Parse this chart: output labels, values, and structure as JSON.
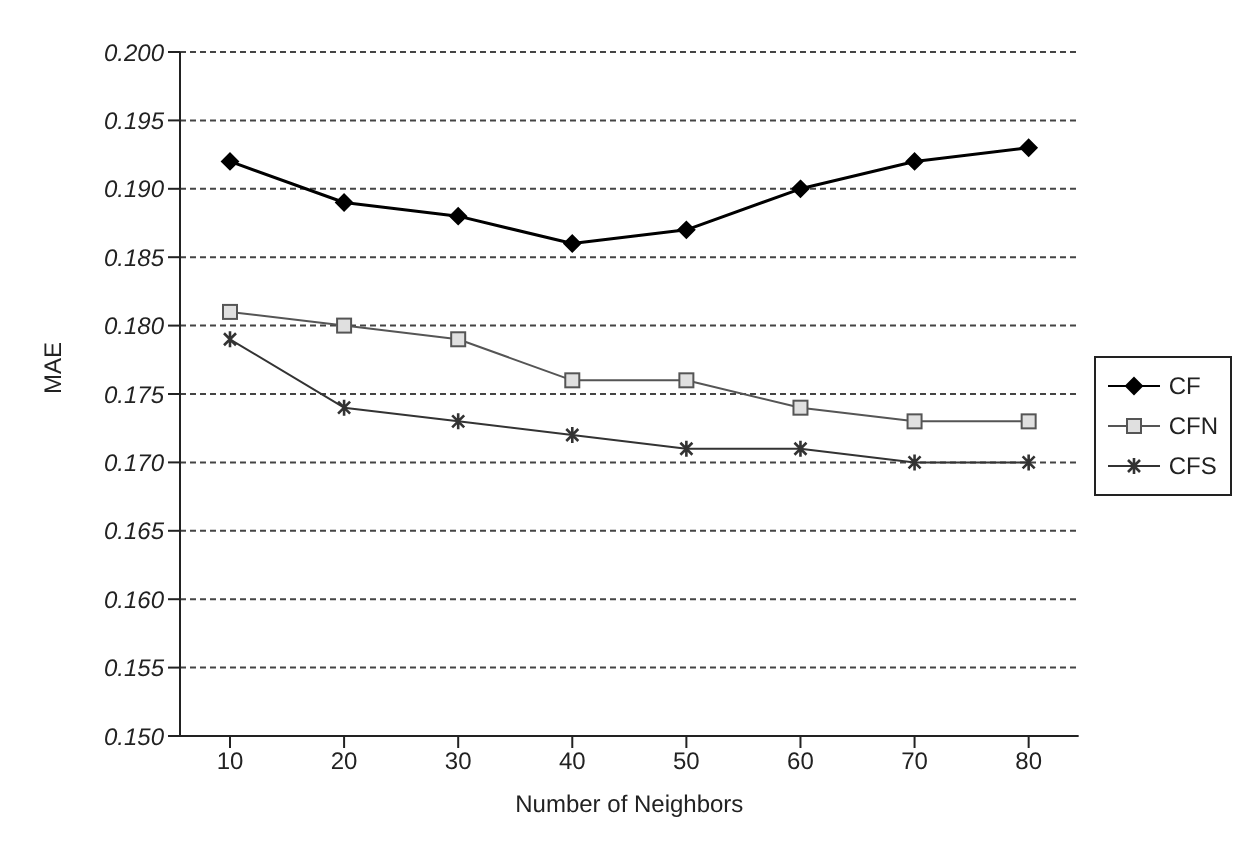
{
  "chart_data": {
    "type": "line",
    "xlabel": "Number of Neighbors",
    "ylabel": "MAE",
    "categories": [
      "10",
      "20",
      "30",
      "40",
      "50",
      "60",
      "70",
      "80"
    ],
    "series": [
      {
        "name": "CF",
        "color": "#000000",
        "marker": "diamond",
        "values": [
          0.192,
          0.189,
          0.188,
          0.186,
          0.187,
          0.19,
          0.192,
          0.193
        ]
      },
      {
        "name": "CFN",
        "color": "#555555",
        "marker": "square",
        "values": [
          0.181,
          0.18,
          0.179,
          0.176,
          0.176,
          0.174,
          0.173,
          0.173
        ]
      },
      {
        "name": "CFS",
        "color": "#333333",
        "marker": "cross",
        "values": [
          0.179,
          0.174,
          0.173,
          0.172,
          0.171,
          0.171,
          0.17,
          0.17
        ]
      }
    ],
    "ylim": [
      0.15,
      0.2
    ],
    "yticks": [
      {
        "value": 0.15,
        "label": "0.150"
      },
      0.155,
      {
        "value": 0.16,
        "label": "0.160"
      },
      0.165,
      {
        "value": 0.17,
        "label": "0.170"
      },
      0.175,
      {
        "value": 0.18,
        "label": "0.180"
      },
      0.185,
      {
        "value": 0.19,
        "label": "0.190"
      },
      0.195,
      {
        "value": 0.2,
        "label": "0.200"
      }
    ],
    "grid": "y",
    "legend": "right",
    "line_style": "solid"
  }
}
